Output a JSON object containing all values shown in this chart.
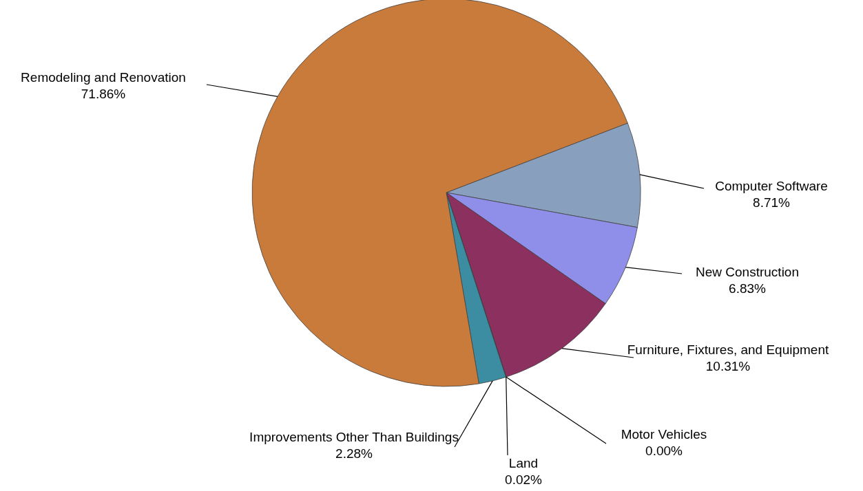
{
  "chart_data": {
    "type": "pie",
    "categories": [
      "Computer Software",
      "New Construction",
      "Furniture, Fixtures, and Equipment",
      "Motor Vehicles",
      "Land",
      "Improvements Other Than Buildings",
      "Remodeling and Renovation"
    ],
    "values": [
      8.71,
      6.83,
      10.31,
      0.0,
      0.02,
      2.28,
      71.86
    ],
    "value_labels": [
      "8.71%",
      "6.83%",
      "10.31%",
      "0.00%",
      "0.02%",
      "2.28%",
      "71.86%"
    ],
    "colors": [
      "#889fbd",
      "#8f8fea",
      "#8b305f",
      "#4f6fa8",
      "#2f5f70",
      "#3c8da2",
      "#c97b3b"
    ]
  }
}
